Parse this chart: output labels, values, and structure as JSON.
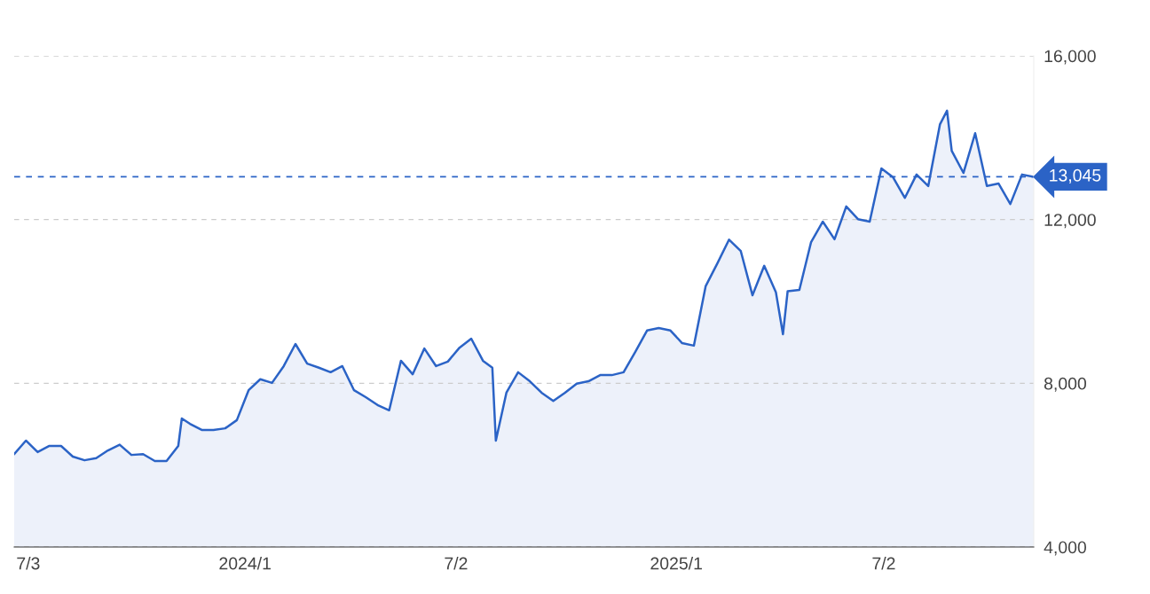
{
  "chart_data": {
    "type": "area",
    "x": [
      "2023-06-21",
      "2023-07-01",
      "2023-07-11",
      "2023-07-21",
      "2023-07-31",
      "2023-08-10",
      "2023-08-20",
      "2023-08-30",
      "2023-09-09",
      "2023-09-19",
      "2023-09-29",
      "2023-10-09",
      "2023-10-19",
      "2023-10-29",
      "2023-11-08",
      "2023-11-11",
      "2023-11-18",
      "2023-11-28",
      "2023-12-08",
      "2023-12-18",
      "2023-12-28",
      "2024-01-07",
      "2024-01-17",
      "2024-01-27",
      "2024-02-06",
      "2024-02-16",
      "2024-02-26",
      "2024-03-07",
      "2024-03-17",
      "2024-03-27",
      "2024-04-06",
      "2024-04-16",
      "2024-04-26",
      "2024-05-06",
      "2024-05-16",
      "2024-05-26",
      "2024-06-05",
      "2024-06-15",
      "2024-06-25",
      "2024-07-05",
      "2024-07-15",
      "2024-07-25",
      "2024-08-02",
      "2024-08-05",
      "2024-08-14",
      "2024-08-24",
      "2024-09-03",
      "2024-09-13",
      "2024-09-23",
      "2024-10-03",
      "2024-10-13",
      "2024-10-23",
      "2024-11-02",
      "2024-11-12",
      "2024-11-22",
      "2024-12-02",
      "2024-12-12",
      "2024-12-22",
      "2025-01-01",
      "2025-01-11",
      "2025-01-21",
      "2025-01-31",
      "2025-02-10",
      "2025-02-20",
      "2025-03-02",
      "2025-03-12",
      "2025-03-22",
      "2025-04-01",
      "2025-04-07",
      "2025-04-11",
      "2025-04-21",
      "2025-05-01",
      "2025-05-11",
      "2025-05-21",
      "2025-05-31",
      "2025-06-10",
      "2025-06-20",
      "2025-06-30",
      "2025-07-10",
      "2025-07-20",
      "2025-07-30",
      "2025-08-09",
      "2025-08-19",
      "2025-08-25",
      "2025-08-29",
      "2025-09-08",
      "2025-09-18",
      "2025-09-28",
      "2025-10-08",
      "2025-10-18",
      "2025-10-28",
      "2025-11-07"
    ],
    "series": [
      {
        "color": "#2b63c6",
        "values": [
          6270,
          6600,
          6320,
          6470,
          6470,
          6210,
          6120,
          6170,
          6360,
          6500,
          6250,
          6270,
          6100,
          6100,
          6470,
          7140,
          7010,
          6860,
          6860,
          6900,
          7100,
          7830,
          8100,
          8010,
          8420,
          8960,
          8480,
          8380,
          8270,
          8420,
          7830,
          7660,
          7470,
          7340,
          8550,
          8220,
          8850,
          8420,
          8530,
          8870,
          9090,
          8550,
          8380,
          6600,
          7770,
          8270,
          8050,
          7770,
          7570,
          7770,
          7990,
          8050,
          8200,
          8200,
          8270,
          8770,
          9290,
          9350,
          9290,
          8980,
          8920,
          10370,
          10930,
          11510,
          11230,
          10150,
          10870,
          10220,
          9200,
          10250,
          10280,
          11450,
          11950,
          11520,
          12320,
          12010,
          11950,
          13250,
          13030,
          12530,
          13100,
          12820,
          14330,
          14660,
          13680,
          13140,
          14110,
          12820,
          12880,
          12380,
          13100,
          13045
        ]
      }
    ],
    "xlim": [
      "2023-06-21",
      "2025-11-07"
    ],
    "xticks": [
      {
        "value": "2023-07-03",
        "label": "7/3"
      },
      {
        "value": "2024-01-04",
        "label": "2024/1"
      },
      {
        "value": "2024-07-02",
        "label": "7/2"
      },
      {
        "value": "2025-01-06",
        "label": "2025/1"
      },
      {
        "value": "2025-07-02",
        "label": "7/2"
      }
    ],
    "ylim": [
      4000,
      16000
    ],
    "yticks": [
      {
        "value": 4000,
        "label": "4,000"
      },
      {
        "value": 8000,
        "label": "8,000"
      },
      {
        "value": 12000,
        "label": "12,000"
      },
      {
        "value": 16000,
        "label": "16,000"
      }
    ],
    "grid": "y",
    "ref_lines": [
      {
        "axis": "y",
        "value": 13045,
        "label": "13,045",
        "color": "#2b63c6",
        "line_style": "dashed"
      }
    ]
  }
}
